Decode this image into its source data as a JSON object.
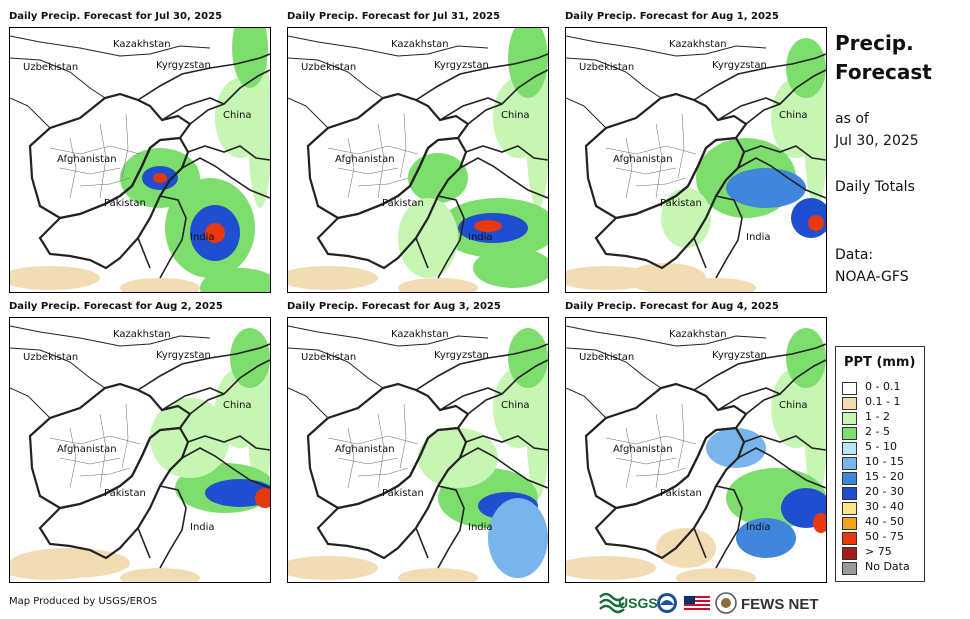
{
  "panels": [
    {
      "title": "Daily Precip. Forecast for Jul 30, 2025"
    },
    {
      "title": "Daily Precip. Forecast for Jul 31, 2025"
    },
    {
      "title": "Daily Precip. Forecast for Aug 1, 2025"
    },
    {
      "title": "Daily Precip. Forecast for Aug 2, 2025"
    },
    {
      "title": "Daily Precip. Forecast for Aug 3, 2025"
    },
    {
      "title": "Daily Precip. Forecast for Aug 4, 2025"
    }
  ],
  "map_labels": {
    "kazakhstan": "Kazakhstan",
    "uzbekistan": "Uzbekistan",
    "kyrgyzstan": "Kyrgyzstan",
    "china": "China",
    "afghanistan": "Afghanistan",
    "pakistan": "Pakistan",
    "india": "India"
  },
  "side": {
    "title_line1": "Precip.",
    "title_line2": "Forecast",
    "asof_line1": "as of",
    "asof_line2": "Jul 30, 2025",
    "totals": "Daily Totals",
    "data_line1": "Data:",
    "data_line2": "NOAA-GFS"
  },
  "legend": {
    "title": "PPT (mm)",
    "items": [
      {
        "label": "0 - 0.1",
        "color": "#ffffff"
      },
      {
        "label": "0.1 - 1",
        "color": "#f2dcb4"
      },
      {
        "label": "1 - 2",
        "color": "#c6f5b4"
      },
      {
        "label": "2 - 5",
        "color": "#7dde6e"
      },
      {
        "label": "5 - 10",
        "color": "#b8e6f8"
      },
      {
        "label": "10 - 15",
        "color": "#7ab4ec"
      },
      {
        "label": "15 - 20",
        "color": "#3f86dc"
      },
      {
        "label": "20 - 30",
        "color": "#1f4fd0"
      },
      {
        "label": "30 - 40",
        "color": "#fde48a"
      },
      {
        "label": "40 - 50",
        "color": "#f5a31c"
      },
      {
        "label": "50 - 75",
        "color": "#e8380e"
      },
      {
        "label": "> 75",
        "color": "#a51c1c"
      },
      {
        "label": "No Data",
        "color": "#9a9a9a"
      }
    ]
  },
  "footer": {
    "credit": "Map Produced by USGS/EROS",
    "usgs": "USGS",
    "fews": "FEWS NET",
    "logos": [
      "usgs-logo",
      "noaa-logo",
      "us-flag",
      "state-seal"
    ]
  }
}
